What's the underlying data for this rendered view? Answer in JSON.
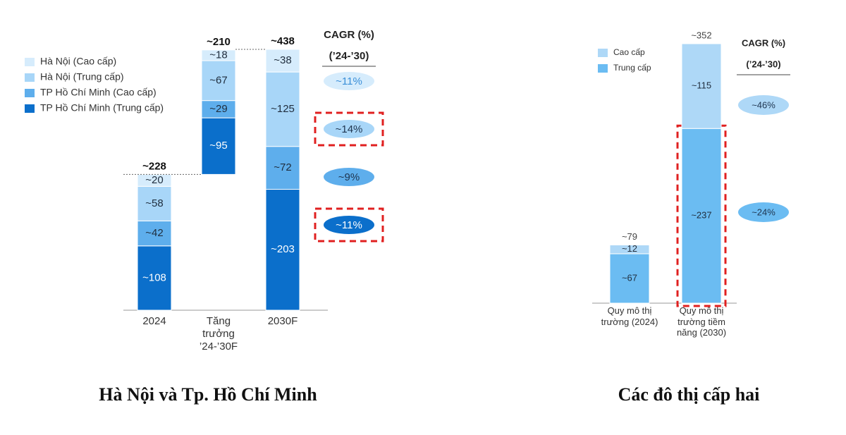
{
  "chart_data": [
    {
      "type": "waterfall",
      "title": "Hà Nội và Tp. Hồ Chí Minh",
      "categories": [
        "2024",
        "Tăng trưởng ’24-’30F",
        "2030F"
      ],
      "series": [
        {
          "name": "Hà Nội (Cao cấp)",
          "color": "#d6ecfc",
          "values": [
            20,
            18,
            38
          ],
          "value_labels": [
            "~20",
            "~18",
            "~38"
          ]
        },
        {
          "name": "Hà Nội (Trung cấp)",
          "color": "#a8d6f8",
          "values": [
            58,
            67,
            125
          ],
          "value_labels": [
            "~58",
            "~67",
            "~125"
          ]
        },
        {
          "name": "TP Hồ Chí Minh (Cao cấp)",
          "color": "#5eaeec",
          "values": [
            42,
            29,
            72
          ],
          "value_labels": [
            "~42",
            "~29",
            "~72"
          ]
        },
        {
          "name": "TP Hồ Chí Minh (Trung cấp)",
          "color": "#0b6fcb",
          "values": [
            108,
            95,
            203
          ],
          "value_labels": [
            "~108",
            "~95",
            "~203"
          ]
        }
      ],
      "totals": {
        "values": [
          228,
          210,
          438
        ],
        "value_labels": [
          "~228",
          "~210",
          "~438"
        ]
      },
      "cagr": {
        "title": "CAGR (%)",
        "subtitle": "(’24-’30)",
        "values": [
          11,
          14,
          9,
          11
        ],
        "value_labels": [
          "~11%",
          "~14%",
          "~9%",
          "~11%"
        ]
      }
    },
    {
      "type": "stacked_bar",
      "title": "Các đô thị cấp hai",
      "categories": [
        "Quy mô thị trường (2024)",
        "Quy mô thị trường tiềm năng (2030)"
      ],
      "series": [
        {
          "name": "Cao cấp",
          "color": "#aed8f7",
          "values": [
            12,
            115
          ],
          "value_labels": [
            "~12",
            "~115"
          ]
        },
        {
          "name": "Trung cấp",
          "color": "#6bbcf2",
          "values": [
            67,
            237
          ],
          "value_labels": [
            "~67",
            "~237"
          ]
        }
      ],
      "totals": {
        "values": [
          79,
          352
        ],
        "value_labels": [
          "~79",
          "~352"
        ]
      },
      "cagr": {
        "title": "CAGR (%)",
        "subtitle": "(’24-’30)",
        "values": [
          46,
          24
        ],
        "value_labels": [
          "~46%",
          "~24%"
        ]
      }
    }
  ]
}
